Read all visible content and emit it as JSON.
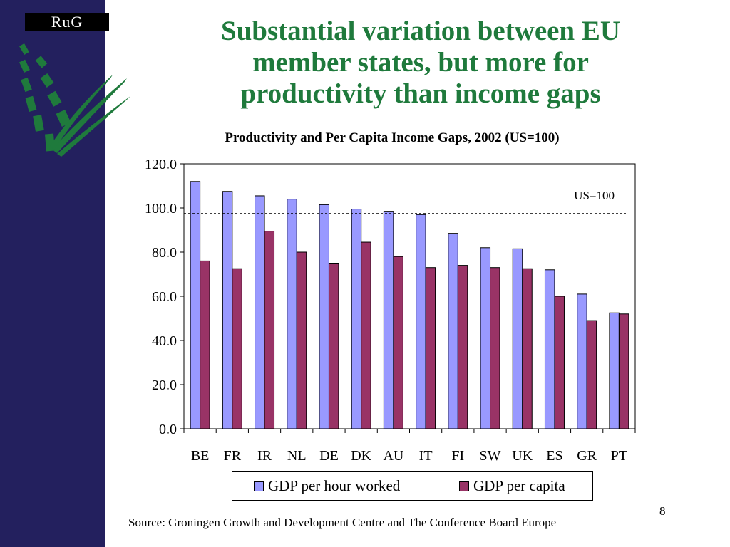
{
  "logo": {
    "text": "RuG"
  },
  "slide": {
    "title_lines": [
      "Substantial variation between EU",
      "member states, but more for",
      "productivity than income gaps"
    ],
    "page_number": "8",
    "source": "Source: Groningen Growth and Development Centre and The Conference Board Europe"
  },
  "colors": {
    "sidebar": "#23205e",
    "title": "#1f7a3c",
    "series_hour": "#9999ff",
    "series_capita": "#993366"
  },
  "chart_data": {
    "type": "bar",
    "title": "Productivity and Per Capita Income Gaps, 2002 (US=100)",
    "categories": [
      "BE",
      "FR",
      "IR",
      "NL",
      "DE",
      "DK",
      "AU",
      "IT",
      "FI",
      "SW",
      "UK",
      "ES",
      "GR",
      "PT"
    ],
    "series": [
      {
        "name": "GDP per hour worked",
        "values": [
          112.0,
          107.5,
          105.5,
          104.0,
          101.5,
          99.5,
          98.5,
          97.0,
          88.5,
          82.0,
          81.5,
          72.0,
          61.0,
          52.5
        ]
      },
      {
        "name": "GDP per capita",
        "values": [
          76.0,
          72.5,
          89.5,
          80.0,
          75.0,
          84.5,
          78.0,
          73.0,
          74.0,
          73.0,
          72.5,
          60.0,
          49.0,
          52.0
        ]
      }
    ],
    "ylim": [
      0,
      120
    ],
    "yticks": [
      "0.0",
      "20.0",
      "40.0",
      "60.0",
      "80.0",
      "100.0",
      "120.0"
    ],
    "reference_line": {
      "value": 97.5,
      "label": "US=100"
    },
    "legend": "bottom",
    "grid": false
  }
}
